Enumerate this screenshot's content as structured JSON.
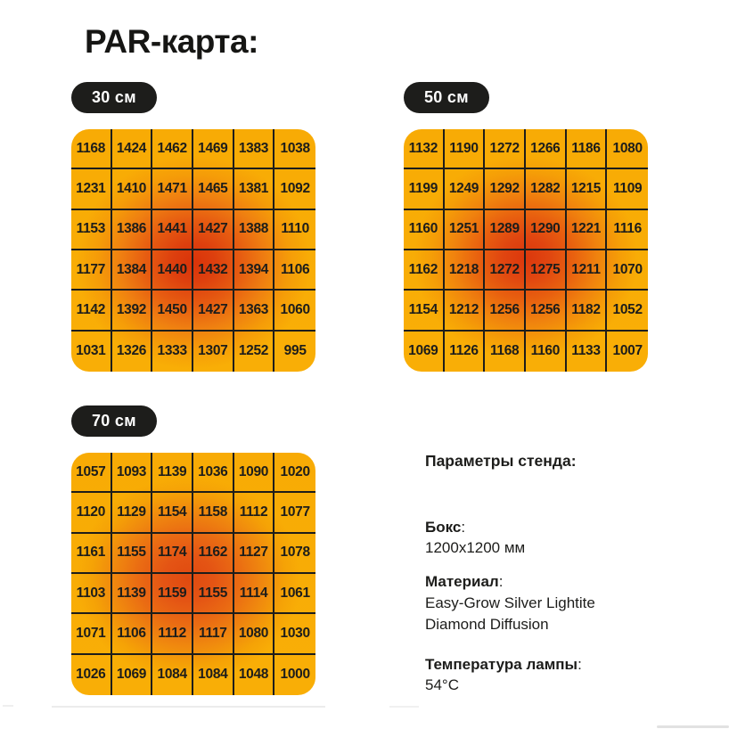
{
  "title": "PAR-карта:",
  "palette": {
    "background": "#ffffff",
    "text": "#1d1d1b",
    "badge_bg": "#1d1d1b",
    "badge_text": "#ffffff",
    "grid_line": "#1d1d1b",
    "heat_edge": "#f8ac05",
    "heat_mid": "#f0830f",
    "heat_hot": "#da360c"
  },
  "chart_data": [
    {
      "type": "heatmap",
      "title": "30 см",
      "rows": 6,
      "cols": 6,
      "values": [
        [
          1168,
          1424,
          1462,
          1469,
          1383,
          1038
        ],
        [
          1231,
          1410,
          1471,
          1465,
          1381,
          1092
        ],
        [
          1153,
          1386,
          1441,
          1427,
          1388,
          1110
        ],
        [
          1177,
          1384,
          1440,
          1432,
          1394,
          1106
        ],
        [
          1142,
          1392,
          1450,
          1427,
          1363,
          1060
        ],
        [
          1031,
          1326,
          1333,
          1307,
          1252,
          995
        ]
      ]
    },
    {
      "type": "heatmap",
      "title": "50 см",
      "rows": 6,
      "cols": 6,
      "values": [
        [
          1132,
          1190,
          1272,
          1266,
          1186,
          1080
        ],
        [
          1199,
          1249,
          1292,
          1282,
          1215,
          1109
        ],
        [
          1160,
          1251,
          1289,
          1290,
          1221,
          1116
        ],
        [
          1162,
          1218,
          1272,
          1275,
          1211,
          1070
        ],
        [
          1154,
          1212,
          1256,
          1256,
          1182,
          1052
        ],
        [
          1069,
          1126,
          1168,
          1160,
          1133,
          1007
        ]
      ]
    },
    {
      "type": "heatmap",
      "title": "70 см",
      "rows": 6,
      "cols": 6,
      "values": [
        [
          1057,
          1093,
          1139,
          1036,
          1090,
          1020
        ],
        [
          1120,
          1129,
          1154,
          1158,
          1112,
          1077
        ],
        [
          1161,
          1155,
          1174,
          1162,
          1127,
          1078
        ],
        [
          1103,
          1139,
          1159,
          1155,
          1114,
          1061
        ],
        [
          1071,
          1106,
          1112,
          1117,
          1080,
          1030
        ],
        [
          1026,
          1069,
          1084,
          1084,
          1048,
          1000
        ]
      ]
    }
  ],
  "params": {
    "heading": "Параметры стенда:",
    "colon": ":",
    "items": [
      {
        "label": "Бокс",
        "value": "1200x1200 мм"
      },
      {
        "label": "Материал",
        "value": "Easy-Grow Silver Lightite Diamond Diffusion"
      },
      {
        "label": "Температура лампы",
        "value": "54°C"
      }
    ]
  }
}
